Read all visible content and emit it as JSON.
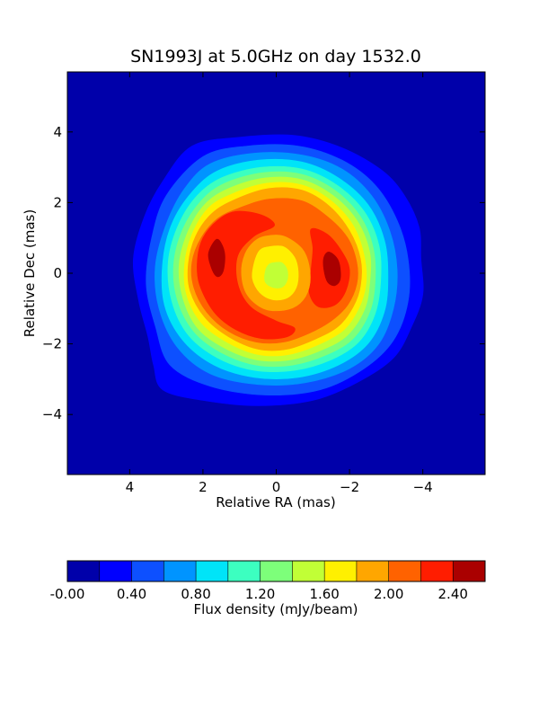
{
  "chart_data": {
    "type": "heatmap",
    "subtype": "filled-contour",
    "title": "SN1993J at 5.0GHz on day 1532.0",
    "xlabel": "Relative RA (mas)",
    "ylabel": "Relative Dec (mas)",
    "xlim": [
      5.7,
      -5.7
    ],
    "ylim": [
      -5.7,
      5.7
    ],
    "x_ticks": [
      4,
      2,
      0,
      -2,
      -4
    ],
    "x_tick_labels": [
      "4",
      "2",
      "0",
      "−2",
      "−4"
    ],
    "y_ticks": [
      4,
      2,
      0,
      -2,
      -4
    ],
    "y_tick_labels": [
      "4",
      "2",
      "0",
      "−2",
      "−4"
    ],
    "x_inverted": true,
    "grid": false,
    "colorbar": {
      "label": "Flux density (mJy/beam)",
      "orientation": "horizontal",
      "placement": "bottom",
      "levels": [
        -0.0,
        0.2,
        0.4,
        0.6,
        0.8,
        1.0,
        1.2,
        1.4,
        1.6,
        1.8,
        2.0,
        2.2,
        2.4,
        2.6
      ],
      "tick_values": [
        -0.0,
        0.4,
        0.8,
        1.2,
        1.6,
        2.0,
        2.4
      ],
      "tick_labels": [
        "-0.00",
        "0.40",
        "0.80",
        "1.20",
        "1.60",
        "2.00",
        "2.40"
      ],
      "colors": [
        "#0000aa",
        "#0000ff",
        "#0d50ff",
        "#0094ff",
        "#00e4f8",
        "#3cffc0",
        "#7dff7a",
        "#c1ff36",
        "#fff000",
        "#ffa600",
        "#ff6200",
        "#ff1d00",
        "#aa0000"
      ]
    },
    "contours": [
      {
        "level": 0.2,
        "color": "#0000ff",
        "points": [
          [
            2.3,
            3.6
          ],
          [
            1.0,
            3.85
          ],
          [
            -0.5,
            3.9
          ],
          [
            -1.8,
            3.55
          ],
          [
            -2.9,
            2.9
          ],
          [
            -3.5,
            2.2
          ],
          [
            -3.9,
            1.3
          ],
          [
            -3.95,
            0.4
          ],
          [
            -4.0,
            -0.6
          ],
          [
            -3.7,
            -1.5
          ],
          [
            -3.2,
            -2.4
          ],
          [
            -2.2,
            -3.1
          ],
          [
            -1.0,
            -3.6
          ],
          [
            0.5,
            -3.75
          ],
          [
            2.0,
            -3.6
          ],
          [
            3.1,
            -3.3
          ],
          [
            3.35,
            -2.6
          ],
          [
            3.5,
            -1.8
          ],
          [
            3.75,
            -0.8
          ],
          [
            3.9,
            0.4
          ],
          [
            3.6,
            1.6
          ],
          [
            3.1,
            2.6
          ]
        ]
      },
      {
        "level": 0.4,
        "color": "#0d50ff",
        "points": [
          [
            2.0,
            3.3
          ],
          [
            0.8,
            3.6
          ],
          [
            -0.6,
            3.6
          ],
          [
            -1.8,
            3.2
          ],
          [
            -2.7,
            2.5
          ],
          [
            -3.3,
            1.5
          ],
          [
            -3.6,
            0.4
          ],
          [
            -3.6,
            -0.8
          ],
          [
            -3.2,
            -1.9
          ],
          [
            -2.4,
            -2.7
          ],
          [
            -1.2,
            -3.3
          ],
          [
            0.3,
            -3.45
          ],
          [
            1.8,
            -3.2
          ],
          [
            2.9,
            -2.6
          ],
          [
            3.3,
            -1.5
          ],
          [
            3.55,
            -0.3
          ],
          [
            3.4,
            1.0
          ],
          [
            3.0,
            2.2
          ]
        ]
      },
      {
        "level": 0.6,
        "color": "#0094ff",
        "points": [
          [
            1.8,
            3.1
          ],
          [
            0.6,
            3.4
          ],
          [
            -0.7,
            3.35
          ],
          [
            -1.8,
            2.95
          ],
          [
            -2.6,
            2.2
          ],
          [
            -3.1,
            1.2
          ],
          [
            -3.3,
            0.1
          ],
          [
            -3.2,
            -1.0
          ],
          [
            -2.8,
            -2.0
          ],
          [
            -2.0,
            -2.7
          ],
          [
            -0.8,
            -3.1
          ],
          [
            0.5,
            -3.15
          ],
          [
            1.8,
            -2.85
          ],
          [
            2.7,
            -2.1
          ],
          [
            3.2,
            -1.0
          ],
          [
            3.3,
            0.2
          ],
          [
            3.0,
            1.4
          ],
          [
            2.5,
            2.4
          ]
        ]
      },
      {
        "level": 0.8,
        "color": "#00e4f8",
        "points": [
          [
            1.6,
            2.9
          ],
          [
            0.5,
            3.2
          ],
          [
            -0.7,
            3.15
          ],
          [
            -1.7,
            2.7
          ],
          [
            -2.5,
            1.95
          ],
          [
            -2.95,
            0.95
          ],
          [
            -3.05,
            -0.1
          ],
          [
            -2.95,
            -1.1
          ],
          [
            -2.5,
            -2.0
          ],
          [
            -1.7,
            -2.6
          ],
          [
            -0.6,
            -2.95
          ],
          [
            0.6,
            -2.95
          ],
          [
            1.7,
            -2.6
          ],
          [
            2.55,
            -1.9
          ],
          [
            3.05,
            -0.9
          ],
          [
            3.1,
            0.3
          ],
          [
            2.85,
            1.4
          ],
          [
            2.3,
            2.3
          ]
        ]
      },
      {
        "level": 1.0,
        "color": "#3cffc0",
        "points": [
          [
            1.5,
            2.7
          ],
          [
            0.4,
            3.0
          ],
          [
            -0.7,
            2.95
          ],
          [
            -1.65,
            2.5
          ],
          [
            -2.4,
            1.75
          ],
          [
            -2.8,
            0.8
          ],
          [
            -2.85,
            -0.2
          ],
          [
            -2.7,
            -1.15
          ],
          [
            -2.25,
            -1.95
          ],
          [
            -1.5,
            -2.45
          ],
          [
            -0.5,
            -2.75
          ],
          [
            0.6,
            -2.75
          ],
          [
            1.6,
            -2.4
          ],
          [
            2.4,
            -1.75
          ],
          [
            2.85,
            -0.8
          ],
          [
            2.95,
            0.3
          ],
          [
            2.7,
            1.3
          ],
          [
            2.2,
            2.15
          ]
        ]
      },
      {
        "level": 1.2,
        "color": "#7dff7a",
        "points": [
          [
            1.4,
            2.55
          ],
          [
            0.35,
            2.85
          ],
          [
            -0.7,
            2.8
          ],
          [
            -1.6,
            2.35
          ],
          [
            -2.3,
            1.6
          ],
          [
            -2.65,
            0.7
          ],
          [
            -2.7,
            -0.25
          ],
          [
            -2.55,
            -1.1
          ],
          [
            -2.1,
            -1.85
          ],
          [
            -1.4,
            -2.3
          ],
          [
            -0.45,
            -2.6
          ],
          [
            0.55,
            -2.6
          ],
          [
            1.5,
            -2.25
          ],
          [
            2.25,
            -1.65
          ],
          [
            2.7,
            -0.75
          ],
          [
            2.8,
            0.25
          ],
          [
            2.55,
            1.25
          ],
          [
            2.05,
            2.05
          ]
        ]
      },
      {
        "level": 1.4,
        "color": "#c1ff36",
        "points": [
          [
            1.3,
            2.4
          ],
          [
            0.3,
            2.7
          ],
          [
            -0.7,
            2.65
          ],
          [
            -1.55,
            2.2
          ],
          [
            -2.2,
            1.5
          ],
          [
            -2.55,
            0.6
          ],
          [
            -2.55,
            -0.3
          ],
          [
            -2.4,
            -1.05
          ],
          [
            -1.95,
            -1.75
          ],
          [
            -1.3,
            -2.15
          ],
          [
            -0.4,
            -2.45
          ],
          [
            0.55,
            -2.45
          ],
          [
            1.45,
            -2.1
          ],
          [
            2.15,
            -1.55
          ],
          [
            2.55,
            -0.7
          ],
          [
            2.65,
            0.25
          ],
          [
            2.4,
            1.2
          ],
          [
            1.95,
            1.95
          ]
        ]
      },
      {
        "level": 1.6,
        "color": "#fff000",
        "points": [
          [
            1.2,
            2.25
          ],
          [
            0.25,
            2.55
          ],
          [
            -0.7,
            2.5
          ],
          [
            -1.5,
            2.05
          ],
          [
            -2.1,
            1.35
          ],
          [
            -2.4,
            0.5
          ],
          [
            -2.45,
            -0.3
          ],
          [
            -2.25,
            -1.0
          ],
          [
            -1.85,
            -1.6
          ],
          [
            -1.2,
            -2.0
          ],
          [
            -0.35,
            -2.3
          ],
          [
            0.5,
            -2.3
          ],
          [
            1.35,
            -1.95
          ],
          [
            2.05,
            -1.4
          ],
          [
            2.45,
            -0.6
          ],
          [
            2.5,
            0.25
          ],
          [
            2.3,
            1.1
          ],
          [
            1.85,
            1.85
          ]
        ]
      },
      {
        "level": 1.8,
        "color": "#ffa600",
        "points": [
          [
            1.1,
            2.1
          ],
          [
            0.2,
            2.4
          ],
          [
            -0.7,
            2.35
          ],
          [
            -1.45,
            1.9
          ],
          [
            -2.0,
            1.2
          ],
          [
            -2.3,
            0.4
          ],
          [
            -2.3,
            -0.35
          ],
          [
            -2.1,
            -0.95
          ],
          [
            -1.7,
            -1.5
          ],
          [
            -1.1,
            -1.85
          ],
          [
            -0.3,
            -2.15
          ],
          [
            0.5,
            -2.15
          ],
          [
            1.3,
            -1.8
          ],
          [
            1.95,
            -1.25
          ],
          [
            2.35,
            -0.5
          ],
          [
            2.4,
            0.25
          ],
          [
            2.2,
            1.05
          ],
          [
            1.75,
            1.7
          ]
        ]
      },
      {
        "level": 2.0,
        "color": "#ff6200",
        "points": [
          [
            1.0,
            1.85
          ],
          [
            0.2,
            2.1
          ],
          [
            -0.7,
            2.05
          ],
          [
            -1.4,
            1.6
          ],
          [
            -1.95,
            1.0
          ],
          [
            -2.2,
            0.3
          ],
          [
            -2.2,
            -0.3
          ],
          [
            -1.95,
            -0.9
          ],
          [
            -1.5,
            -1.35
          ],
          [
            -0.9,
            -1.7
          ],
          [
            -0.2,
            -1.95
          ],
          [
            0.55,
            -1.95
          ],
          [
            1.3,
            -1.65
          ],
          [
            1.9,
            -1.1
          ],
          [
            2.25,
            -0.4
          ],
          [
            2.3,
            0.3
          ],
          [
            2.05,
            1.0
          ],
          [
            1.6,
            1.55
          ]
        ]
      },
      {
        "level": 2.2,
        "color": "#ff1d00",
        "points": [
          [
            1.6,
            1.5
          ],
          [
            1.1,
            1.75
          ],
          [
            0.4,
            1.65
          ],
          [
            0.05,
            1.35
          ],
          [
            0.6,
            1.05
          ],
          [
            1.05,
            0.5
          ],
          [
            1.05,
            -0.3
          ],
          [
            0.7,
            -0.95
          ],
          [
            0.0,
            -1.35
          ],
          [
            -0.5,
            -1.55
          ],
          [
            -0.3,
            -1.8
          ],
          [
            0.4,
            -1.85
          ],
          [
            1.1,
            -1.6
          ],
          [
            1.7,
            -1.1
          ],
          [
            2.1,
            -0.3
          ],
          [
            2.15,
            0.4
          ],
          [
            2.0,
            1.0
          ]
        ]
      },
      {
        "level": 2.2,
        "color": "#ff1d00",
        "points": [
          [
            -0.95,
            1.25
          ],
          [
            -1.4,
            1.1
          ],
          [
            -1.8,
            0.6
          ],
          [
            -2.0,
            0.1
          ],
          [
            -1.9,
            -0.5
          ],
          [
            -1.6,
            -0.9
          ],
          [
            -1.15,
            -0.95
          ],
          [
            -0.9,
            -0.55
          ],
          [
            -0.95,
            0.1
          ],
          [
            -1.0,
            0.7
          ]
        ]
      },
      {
        "level": 2.4,
        "color": "#aa0000",
        "points": [
          [
            1.65,
            0.95
          ],
          [
            1.85,
            0.55
          ],
          [
            1.75,
            0.1
          ],
          [
            1.6,
            -0.1
          ],
          [
            1.45,
            0.05
          ],
          [
            1.4,
            0.5
          ],
          [
            1.5,
            0.85
          ]
        ]
      },
      {
        "level": 2.4,
        "color": "#aa0000",
        "points": [
          [
            -1.45,
            0.6
          ],
          [
            -1.7,
            0.35
          ],
          [
            -1.75,
            -0.15
          ],
          [
            -1.6,
            -0.35
          ],
          [
            -1.4,
            -0.25
          ],
          [
            -1.3,
            0.1
          ],
          [
            -1.3,
            0.45
          ]
        ]
      },
      {
        "level": 1.8,
        "color": "#ffa600",
        "points": [
          [
            0.3,
            1.05
          ],
          [
            -0.2,
            1.05
          ],
          [
            -0.7,
            0.7
          ],
          [
            -0.9,
            0.2
          ],
          [
            -0.9,
            -0.4
          ],
          [
            -0.65,
            -0.85
          ],
          [
            -0.2,
            -1.05
          ],
          [
            0.35,
            -1.0
          ],
          [
            0.8,
            -0.6
          ],
          [
            0.95,
            0.0
          ],
          [
            0.85,
            0.55
          ],
          [
            0.6,
            0.9
          ]
        ]
      },
      {
        "level": 1.6,
        "color": "#fff000",
        "points": [
          [
            0.2,
            0.75
          ],
          [
            -0.2,
            0.75
          ],
          [
            -0.5,
            0.45
          ],
          [
            -0.6,
            0.05
          ],
          [
            -0.55,
            -0.4
          ],
          [
            -0.3,
            -0.7
          ],
          [
            0.1,
            -0.75
          ],
          [
            0.45,
            -0.55
          ],
          [
            0.65,
            -0.15
          ],
          [
            0.6,
            0.3
          ],
          [
            0.45,
            0.65
          ]
        ]
      },
      {
        "level": 1.4,
        "color": "#c1ff36",
        "points": [
          [
            0.05,
            0.3
          ],
          [
            -0.15,
            0.3
          ],
          [
            -0.3,
            0.1
          ],
          [
            -0.3,
            -0.2
          ],
          [
            -0.15,
            -0.4
          ],
          [
            0.1,
            -0.4
          ],
          [
            0.3,
            -0.25
          ],
          [
            0.3,
            0.05
          ],
          [
            0.2,
            0.25
          ]
        ]
      }
    ]
  }
}
